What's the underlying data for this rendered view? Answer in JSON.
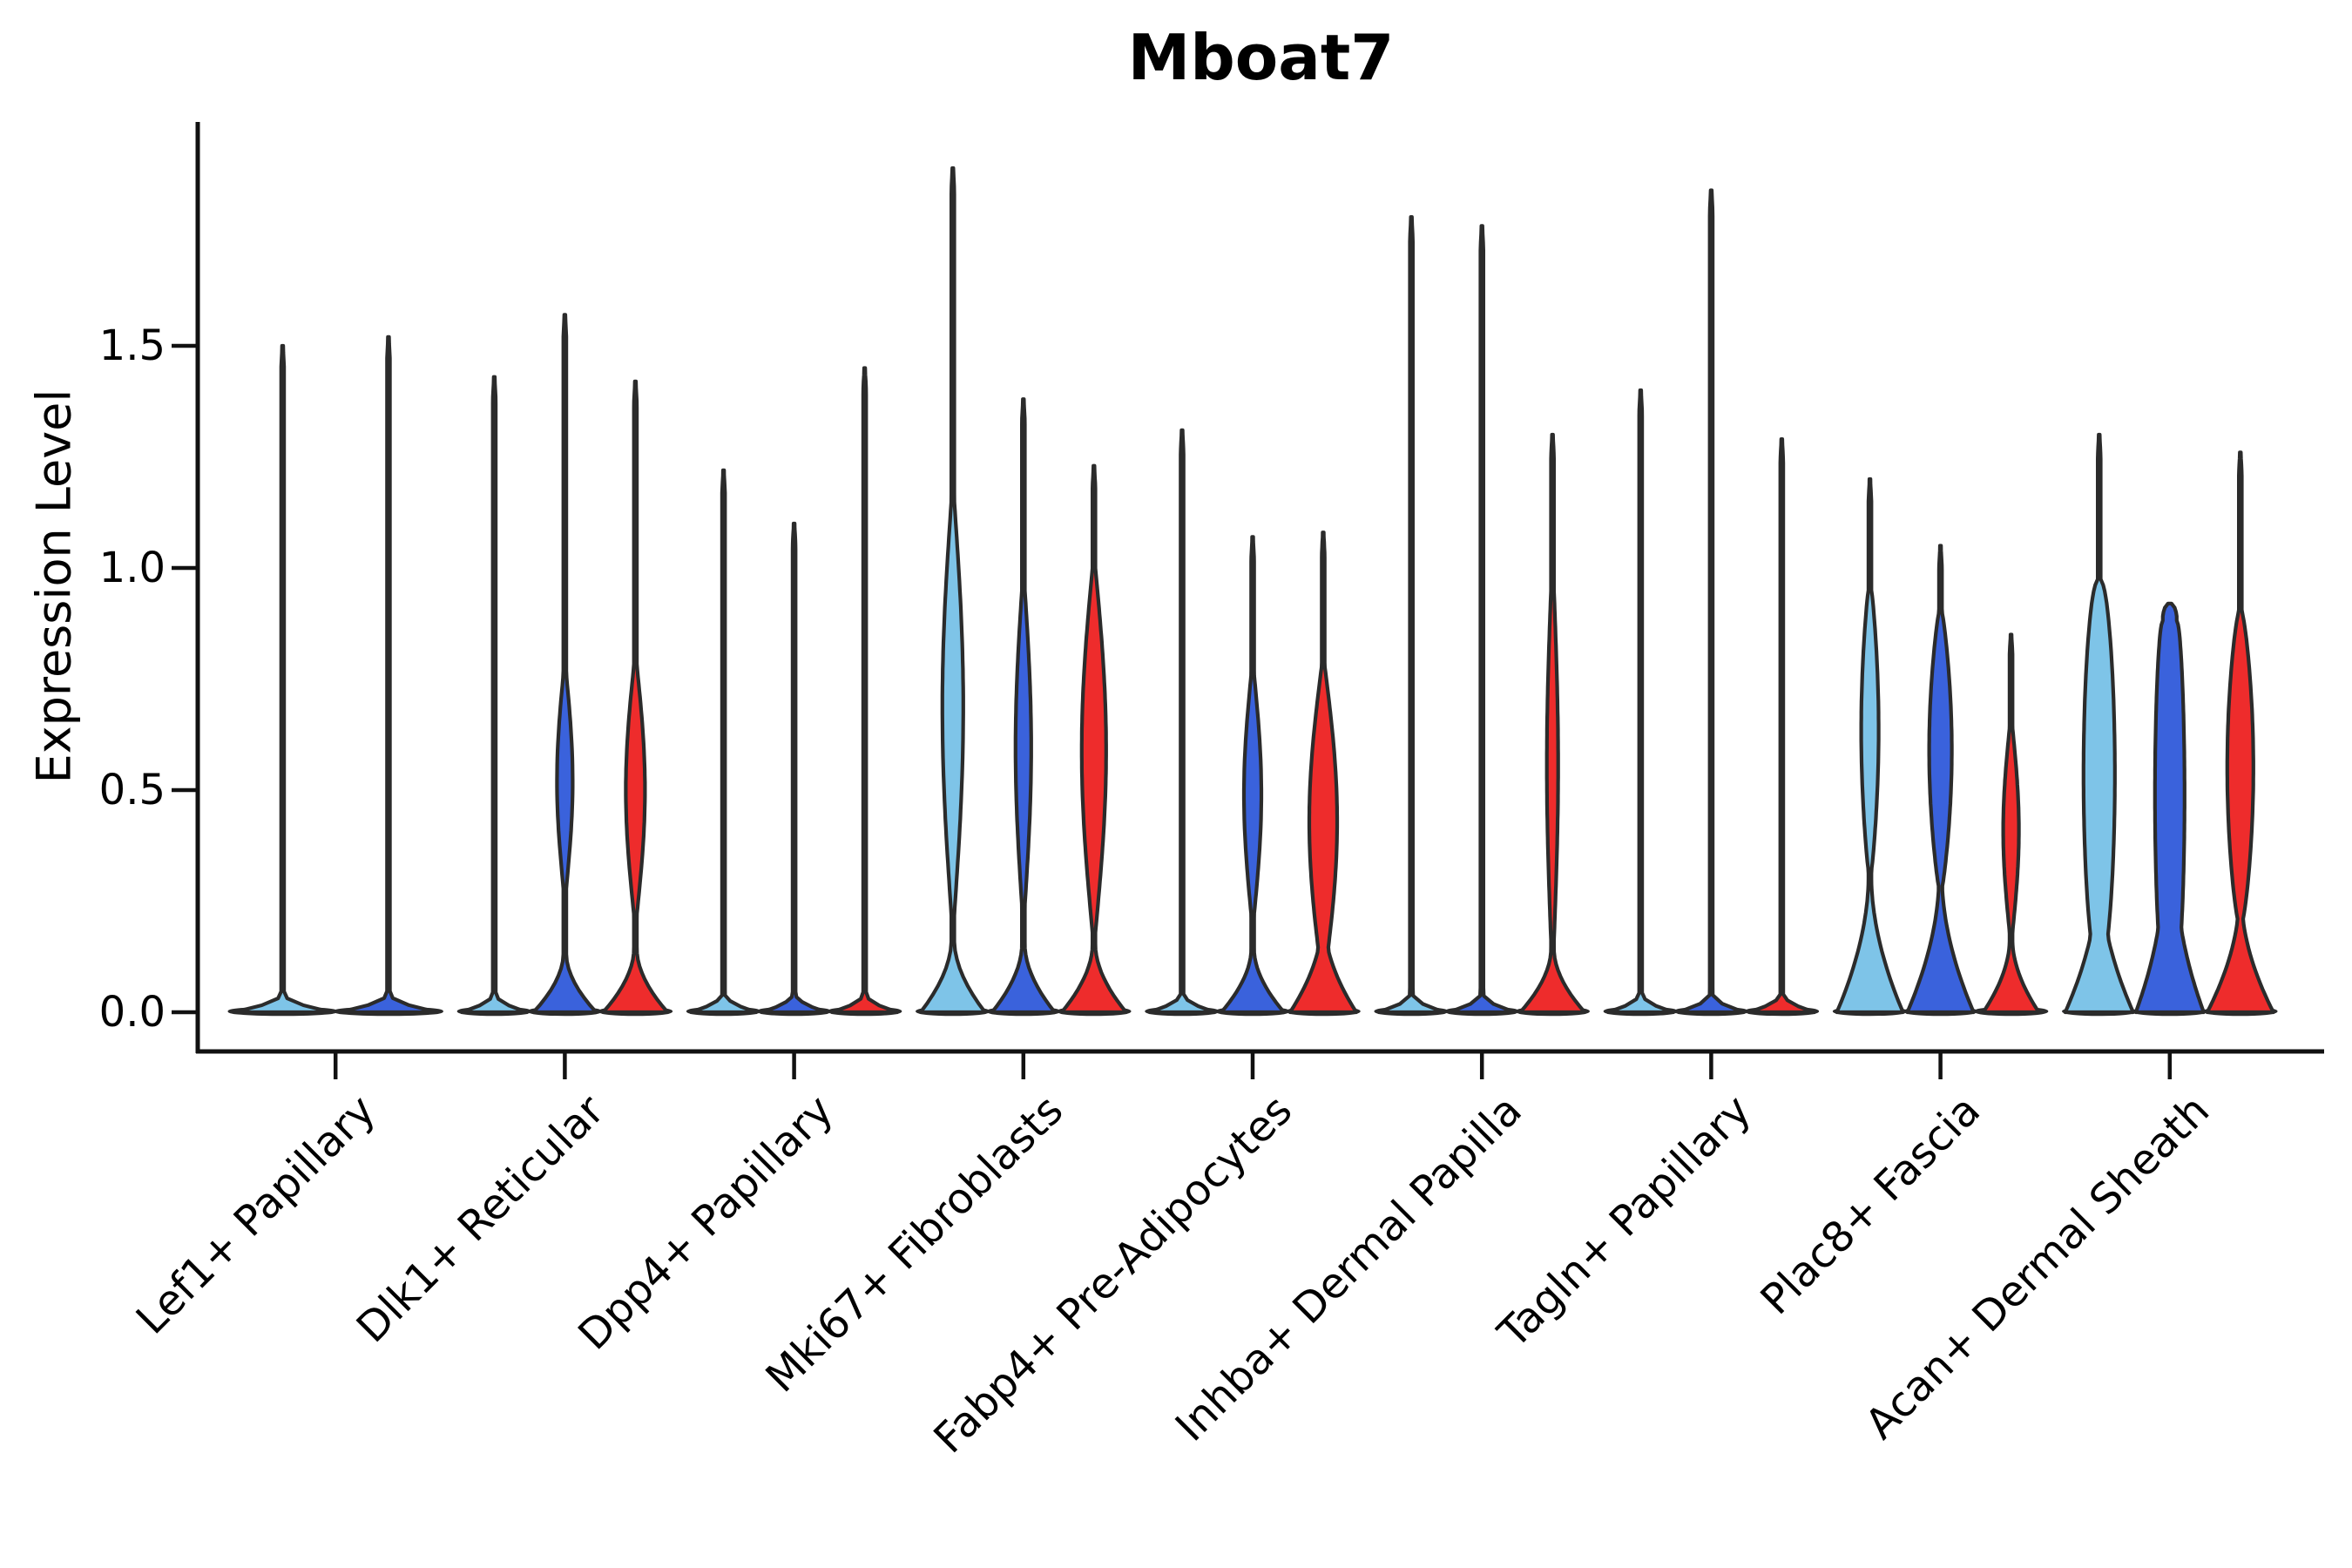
{
  "figure": {
    "background": "#FFFFFF"
  },
  "chart_data": {
    "type": "violin",
    "title": "Mboat7",
    "ylabel": "Expression Level",
    "xlabel": "",
    "ylim": [
      0,
      2.0
    ],
    "grid": "off",
    "legend": "none",
    "yticks": [
      {
        "value": 0.0,
        "label": "0.0"
      },
      {
        "value": 0.5,
        "label": "0.5"
      },
      {
        "value": 1.0,
        "label": "1.0"
      },
      {
        "value": 1.5,
        "label": "1.5"
      }
    ],
    "split_colors": {
      "lightblue": "#7EC4E8",
      "blue": "#3A62DC",
      "red": "#EE2C2C"
    },
    "outline_color": "#2B2B2B",
    "axis_color": "#111111",
    "base_strip_color": "#2F2F2F",
    "groups": [
      {
        "label": "Lef1+ Papillary",
        "violins": [
          {
            "split": "lightblue",
            "max": 1.5,
            "shape": "spike"
          },
          {
            "split": "blue",
            "max": 1.52,
            "shape": "spike"
          }
        ]
      },
      {
        "label": "Dlk1+ Reticular",
        "violins": [
          {
            "split": "lightblue",
            "max": 1.43,
            "shape": "spike"
          },
          {
            "split": "blue",
            "max": 1.57,
            "shape": "violin",
            "base_top": 0.13,
            "base_hw": 36,
            "bulge": {
              "from": 0.28,
              "to": 0.76,
              "hw": 9
            }
          },
          {
            "split": "red",
            "max": 1.42,
            "shape": "violin",
            "base_top": 0.14,
            "base_hw": 37,
            "bulge": {
              "from": 0.22,
              "to": 0.78,
              "hw": 11
            }
          }
        ]
      },
      {
        "label": "Dpp4+ Papillary",
        "violins": [
          {
            "split": "lightblue",
            "max": 1.22,
            "shape": "spike"
          },
          {
            "split": "blue",
            "max": 1.1,
            "shape": "spike"
          },
          {
            "split": "red",
            "max": 1.45,
            "shape": "spike"
          }
        ]
      },
      {
        "label": "Mki67+ Fibroblasts",
        "violins": [
          {
            "split": "lightblue",
            "max": 1.9,
            "shape": "violin",
            "base_top": 0.16,
            "base_hw": 37,
            "bulge": {
              "from": 0.22,
              "to": 1.15,
              "hw": 12
            }
          },
          {
            "split": "blue",
            "max": 1.38,
            "shape": "violin",
            "base_top": 0.15,
            "base_hw": 36,
            "bulge": {
              "from": 0.24,
              "to": 0.95,
              "hw": 9
            }
          },
          {
            "split": "red",
            "max": 1.23,
            "shape": "violin",
            "base_top": 0.15,
            "base_hw": 37,
            "bulge": {
              "from": 0.18,
              "to": 1.0,
              "hw": 14
            }
          }
        ]
      },
      {
        "label": "Fabp4+ Pre-Adipocytes",
        "violins": [
          {
            "split": "lightblue",
            "max": 1.31,
            "shape": "spike"
          },
          {
            "split": "blue",
            "max": 1.07,
            "shape": "violin",
            "base_top": 0.14,
            "base_hw": 36,
            "bulge": {
              "from": 0.22,
              "to": 0.76,
              "hw": 10
            }
          },
          {
            "split": "red",
            "max": 1.08,
            "shape": "violin",
            "base_top": 0.2,
            "base_hw": 38,
            "bulge": {
              "from": 0.08,
              "to": 0.78,
              "hw": 16
            }
          }
        ]
      },
      {
        "label": "Inhba+ Dermal Papilla",
        "violins": [
          {
            "split": "lightblue",
            "max": 1.79,
            "shape": "spike"
          },
          {
            "split": "blue",
            "max": 1.77,
            "shape": "spike"
          },
          {
            "split": "red",
            "max": 1.3,
            "shape": "violin",
            "base_top": 0.14,
            "base_hw": 37,
            "bulge": {
              "from": 0.16,
              "to": 0.95,
              "hw": 6.5
            }
          }
        ]
      },
      {
        "label": "Tagln+ Papillary",
        "violins": [
          {
            "split": "lightblue",
            "max": 1.4,
            "shape": "spike"
          },
          {
            "split": "blue",
            "max": 1.85,
            "shape": "spike"
          },
          {
            "split": "red",
            "max": 1.29,
            "shape": "spike"
          }
        ]
      },
      {
        "label": "Plac8+ Fascia",
        "violins": [
          {
            "split": "lightblue",
            "max": 1.2,
            "shape": "violin",
            "base_top": 0.3,
            "base_hw": 38,
            "bulge": {
              "from": 0.32,
              "to": 0.95,
              "hw": 10,
              "exp": 0.8
            }
          },
          {
            "split": "blue",
            "max": 1.05,
            "shape": "violin",
            "base_top": 0.3,
            "base_hw": 38,
            "bulge": {
              "from": 0.28,
              "to": 0.9,
              "hw": 13,
              "exp": 0.8
            }
          },
          {
            "split": "red",
            "max": 0.85,
            "shape": "violin",
            "base_top": 0.16,
            "base_hw": 32,
            "bulge": {
              "from": 0.18,
              "to": 0.64,
              "hw": 9
            }
          }
        ]
      },
      {
        "label": "Acan+ Dermal Sheath",
        "violins": [
          {
            "split": "lightblue",
            "max": 1.3,
            "shape": "violin",
            "base_top": 0.3,
            "base_hw": 39,
            "bulge": {
              "from": 0.1,
              "to": 0.97,
              "hw": 18,
              "exp": 0.5
            }
          },
          {
            "split": "blue",
            "max": 0.92,
            "shape": "violin",
            "base_top": 0.3,
            "base_hw": 39,
            "bulge": {
              "from": 0.1,
              "to": 0.88,
              "hw": 17,
              "exp": 0.5
            },
            "blunt": true,
            "spike_hw": 8
          },
          {
            "split": "red",
            "max": 1.26,
            "shape": "violin",
            "base_top": 0.25,
            "base_hw": 38,
            "bulge": {
              "from": 0.2,
              "to": 0.9,
              "hw": 15,
              "exp": 0.7
            }
          }
        ]
      }
    ]
  }
}
